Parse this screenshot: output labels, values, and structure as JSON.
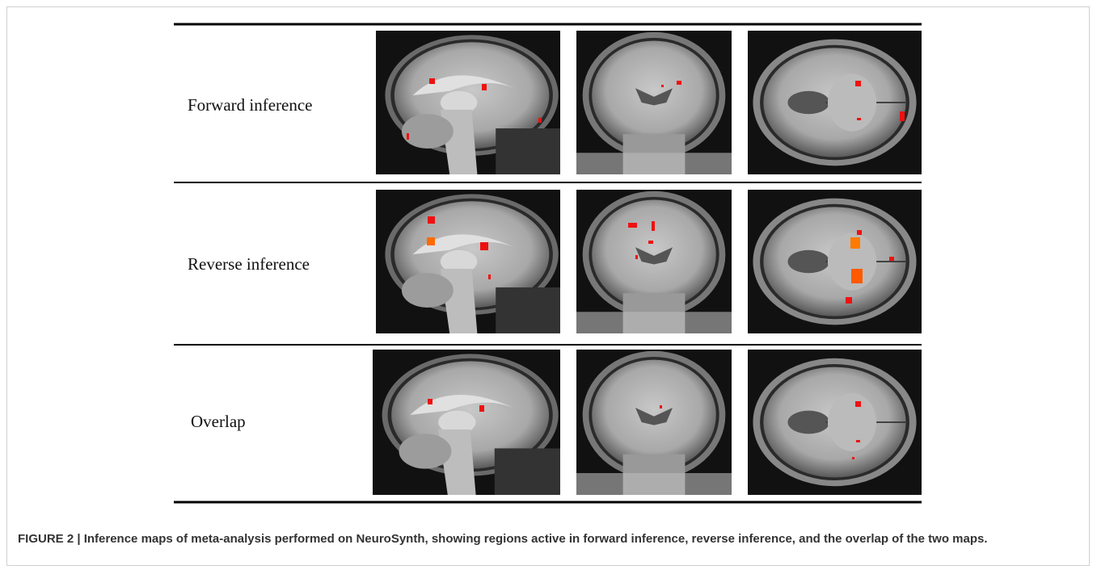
{
  "figure": {
    "rows": [
      {
        "label": "Forward inference"
      },
      {
        "label": "Reverse inference"
      },
      {
        "label": "Overlap"
      }
    ]
  },
  "caption": {
    "text": "FIGURE 2 | Inference maps of meta-analysis performed on NeuroSynth, showing regions active in forward inference, reverse inference, and the overlap of the two maps."
  }
}
